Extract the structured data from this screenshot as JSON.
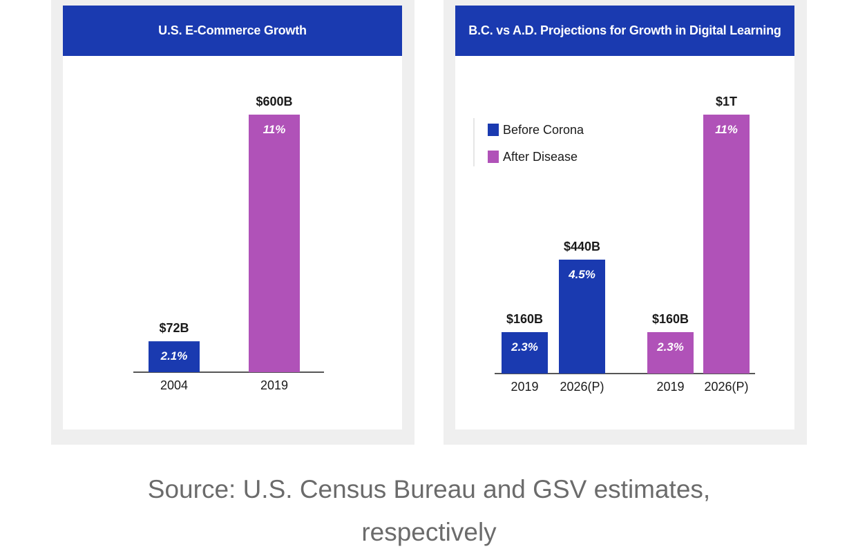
{
  "chart_data": [
    {
      "type": "bar",
      "title": "U.S. E-Commerce Growth",
      "categories": [
        "2004",
        "2019"
      ],
      "values": [
        72,
        600
      ],
      "value_labels": [
        "$72B",
        "$600B"
      ],
      "rate_labels": [
        "2.1%",
        "11%"
      ],
      "colors": [
        "#1a3ab0",
        "#b052b8"
      ],
      "ylim": [
        0,
        600
      ]
    },
    {
      "type": "bar",
      "title": "B.C. vs A.D. Projections for Growth in Digital Learning",
      "categories": [
        "2019",
        "2026(P)",
        "2019",
        "2026(P)"
      ],
      "values": [
        160,
        440,
        160,
        1000
      ],
      "value_labels": [
        "$160B",
        "$440B",
        "$160B",
        "$1T"
      ],
      "rate_labels": [
        "2.3%",
        "4.5%",
        "2.3%",
        "11%"
      ],
      "series_of_bar": [
        0,
        0,
        1,
        1
      ],
      "series": [
        {
          "name": "Before Corona",
          "color": "#1a3ab0"
        },
        {
          "name": "After Disease",
          "color": "#b052b8"
        }
      ],
      "legend": "top-left",
      "ylim": [
        0,
        1000
      ]
    }
  ],
  "caption": {
    "line1": "Source: U.S. Census Bureau and GSV estimates,",
    "line2": "respectively"
  }
}
